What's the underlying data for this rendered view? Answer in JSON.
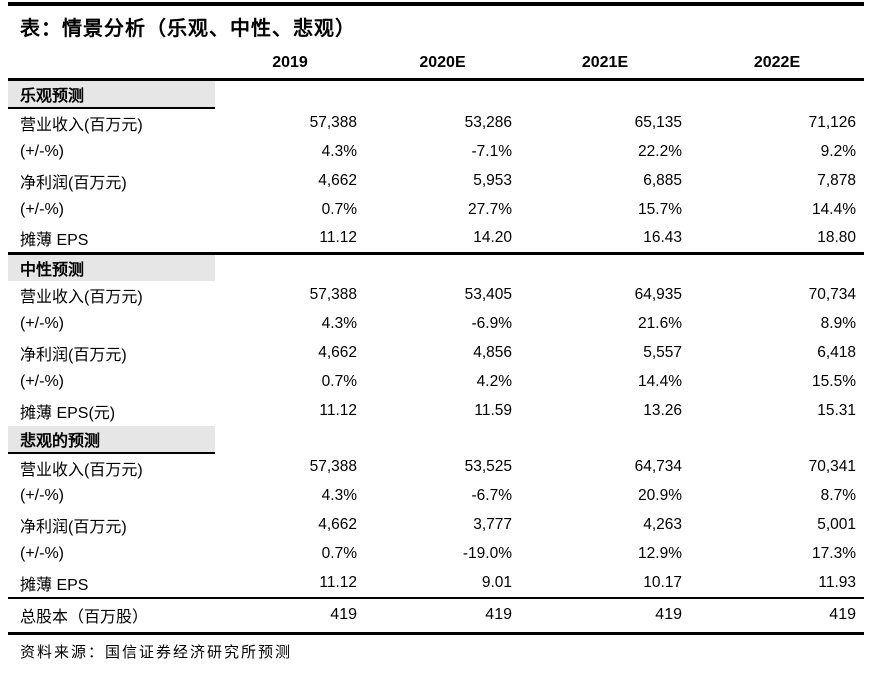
{
  "title": "表：情景分析（乐观、中性、悲观）",
  "columns": [
    "2019",
    "2020E",
    "2021E",
    "2022E"
  ],
  "sections": [
    {
      "header": "乐观预测",
      "rule_above": false,
      "rule_below": true,
      "rows": [
        {
          "label": "营业收入(百万元)",
          "values": [
            "57,388",
            "53,286",
            "65,135",
            "71,126"
          ]
        },
        {
          "label": "(+/-%)",
          "values": [
            "4.3%",
            "-7.1%",
            "22.2%",
            "9.2%"
          ]
        },
        {
          "label": "净利润(百万元)",
          "values": [
            "4,662",
            "5,953",
            "6,885",
            "7,878"
          ]
        },
        {
          "label": "(+/-%)",
          "values": [
            "0.7%",
            "27.7%",
            "15.7%",
            "14.4%"
          ]
        },
        {
          "label": "摊薄 EPS",
          "values": [
            "11.12",
            "14.20",
            "16.43",
            "18.80"
          ]
        }
      ]
    },
    {
      "header": "中性预测",
      "rule_above": true,
      "rule_below": false,
      "rows": [
        {
          "label": "营业收入(百万元)",
          "values": [
            "57,388",
            "53,405",
            "64,935",
            "70,734"
          ]
        },
        {
          "label": "(+/-%)",
          "values": [
            "4.3%",
            "-6.9%",
            "21.6%",
            "8.9%"
          ]
        },
        {
          "label": "净利润(百万元)",
          "values": [
            "4,662",
            "4,856",
            "5,557",
            "6,418"
          ]
        },
        {
          "label": "(+/-%)",
          "values": [
            "0.7%",
            "4.2%",
            "14.4%",
            "15.5%"
          ]
        },
        {
          "label": "摊薄 EPS(元)",
          "values": [
            "11.12",
            "11.59",
            "13.26",
            "15.31"
          ]
        }
      ]
    },
    {
      "header": "悲观的预测",
      "rule_above": false,
      "rule_below": true,
      "rows": [
        {
          "label": "营业收入(百万元)",
          "values": [
            "57,388",
            "53,525",
            "64,734",
            "70,341"
          ]
        },
        {
          "label": "(+/-%)",
          "values": [
            "4.3%",
            "-6.7%",
            "20.9%",
            "8.7%"
          ]
        },
        {
          "label": "净利润(百万元)",
          "values": [
            "4,662",
            "3,777",
            "4,263",
            "5,001"
          ]
        },
        {
          "label": "(+/-%)",
          "values": [
            "0.7%",
            "-19.0%",
            "12.9%",
            "17.3%"
          ]
        },
        {
          "label": "摊薄 EPS",
          "values": [
            "11.12",
            "9.01",
            "10.17",
            "11.93"
          ]
        }
      ]
    }
  ],
  "total_row": {
    "label": "总股本（百万股）",
    "values": [
      "419",
      "419",
      "419",
      "419"
    ]
  },
  "source": "资料来源：国信证券经济研究所预测",
  "colors": {
    "section_band": "#e6e6e6",
    "rule": "#000000",
    "text": "#000000",
    "background": "#ffffff"
  },
  "chart_data": {
    "type": "table",
    "title": "表：情景分析（乐观、中性、悲观）",
    "columns": [
      "2019",
      "2020E",
      "2021E",
      "2022E"
    ],
    "scenarios": [
      {
        "name": "乐观预测",
        "revenue_mn": [
          57388,
          53286,
          65135,
          71126
        ],
        "revenue_growth_pct": [
          4.3,
          -7.1,
          22.2,
          9.2
        ],
        "net_profit_mn": [
          4662,
          5953,
          6885,
          7878
        ],
        "net_profit_growth_pct": [
          0.7,
          27.7,
          15.7,
          14.4
        ],
        "diluted_eps": [
          11.12,
          14.2,
          16.43,
          18.8
        ]
      },
      {
        "name": "中性预测",
        "revenue_mn": [
          57388,
          53405,
          64935,
          70734
        ],
        "revenue_growth_pct": [
          4.3,
          -6.9,
          21.6,
          8.9
        ],
        "net_profit_mn": [
          4662,
          4856,
          5557,
          6418
        ],
        "net_profit_growth_pct": [
          0.7,
          4.2,
          14.4,
          15.5
        ],
        "diluted_eps": [
          11.12,
          11.59,
          13.26,
          15.31
        ]
      },
      {
        "name": "悲观的预测",
        "revenue_mn": [
          57388,
          53525,
          64734,
          70341
        ],
        "revenue_growth_pct": [
          4.3,
          -6.7,
          20.9,
          8.7
        ],
        "net_profit_mn": [
          4662,
          3777,
          4263,
          5001
        ],
        "net_profit_growth_pct": [
          0.7,
          -19.0,
          12.9,
          17.3
        ],
        "diluted_eps": [
          11.12,
          9.01,
          10.17,
          11.93
        ]
      }
    ],
    "total_shares_mn": [
      419,
      419,
      419,
      419
    ],
    "source": "资料来源：国信证券经济研究所预测"
  }
}
